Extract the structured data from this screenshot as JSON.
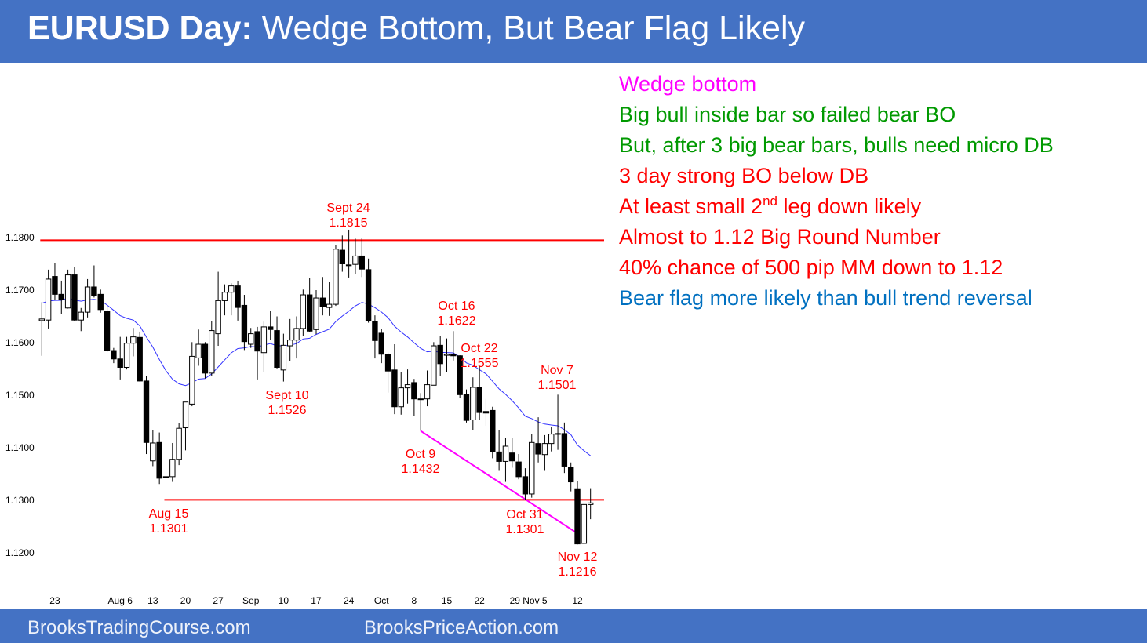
{
  "title": {
    "bold": "EURUSD Day:",
    "rest": " Wedge Bottom, But Bear Flag Likely"
  },
  "footer": {
    "left": "BrooksTradingCourse.com",
    "right": "BrooksPriceAction.com"
  },
  "notes": [
    {
      "text": "Wedge bottom",
      "color": "#FF00FF"
    },
    {
      "text": "Big bull inside bar so failed bear BO",
      "color": "#009900"
    },
    {
      "text": "But, after 3 big bear bars, bulls need micro DB",
      "color": "#009900"
    },
    {
      "text": "3 day strong BO below DB",
      "color": "#FF0000"
    },
    {
      "text": "At least small 2",
      "sup": "nd",
      "after": " leg down likely",
      "color": "#FF0000"
    },
    {
      "text": "Almost to 1.12 Big Round Number",
      "color": "#FF0000"
    },
    {
      "text": "40% chance of 500 pip MM down to 1.12",
      "color": "#FF0000"
    },
    {
      "text": "Bear flag more likely than bull trend reversal",
      "color": "#0070C0"
    }
  ],
  "chart_data": {
    "type": "candlestick",
    "title": "EURUSD Day",
    "ylim": [
      1.12,
      1.18
    ],
    "y_ticks": [
      "1.1800",
      "1.1700",
      "1.1600",
      "1.1500",
      "1.1400",
      "1.1300",
      "1.1200"
    ],
    "y_tick_values": [
      1.18,
      1.17,
      1.16,
      1.15,
      1.14,
      1.13,
      1.12
    ],
    "x_ticks": [
      {
        "label": "23",
        "bar": 2
      },
      {
        "label": "Aug  6",
        "bar": 12
      },
      {
        "label": "13",
        "bar": 17
      },
      {
        "label": "20",
        "bar": 22
      },
      {
        "label": "27",
        "bar": 27
      },
      {
        "label": "Sep",
        "bar": 32
      },
      {
        "label": "10",
        "bar": 37
      },
      {
        "label": "17",
        "bar": 42
      },
      {
        "label": "24",
        "bar": 47
      },
      {
        "label": "Oct",
        "bar": 52
      },
      {
        "label": "8",
        "bar": 57
      },
      {
        "label": "15",
        "bar": 62
      },
      {
        "label": "22",
        "bar": 67
      },
      {
        "label": "29  Nov 5",
        "bar": 74.5
      },
      {
        "label": "12",
        "bar": 82
      }
    ],
    "ohlc": [
      [
        1.1642,
        1.1677,
        1.1575,
        1.1645
      ],
      [
        1.1643,
        1.1739,
        1.1627,
        1.1721
      ],
      [
        1.1726,
        1.1752,
        1.1681,
        1.1692
      ],
      [
        1.1692,
        1.1718,
        1.1655,
        1.1682
      ],
      [
        1.1666,
        1.1739,
        1.1665,
        1.1729
      ],
      [
        1.1729,
        1.1744,
        1.1641,
        1.1643
      ],
      [
        1.1643,
        1.1666,
        1.1622,
        1.1658
      ],
      [
        1.1658,
        1.1721,
        1.1648,
        1.1706
      ],
      [
        1.1706,
        1.1747,
        1.1686,
        1.169
      ],
      [
        1.1692,
        1.1701,
        1.1657,
        1.1663
      ],
      [
        1.166,
        1.1668,
        1.1582,
        1.1585
      ],
      [
        1.1585,
        1.159,
        1.1561,
        1.1569
      ],
      [
        1.1569,
        1.1611,
        1.153,
        1.1553
      ],
      [
        1.1553,
        1.1611,
        1.1549,
        1.1599
      ],
      [
        1.1599,
        1.1628,
        1.1574,
        1.1611
      ],
      [
        1.161,
        1.1621,
        1.1526,
        1.1527
      ],
      [
        1.1527,
        1.1536,
        1.1388,
        1.141
      ],
      [
        1.1375,
        1.1433,
        1.1365,
        1.1409
      ],
      [
        1.141,
        1.1429,
        1.1331,
        1.1342
      ],
      [
        1.1345,
        1.1356,
        1.1301,
        1.1345
      ],
      [
        1.1345,
        1.1409,
        1.1335,
        1.1378
      ],
      [
        1.1378,
        1.1447,
        1.1367,
        1.1437
      ],
      [
        1.1438,
        1.1487,
        1.1395,
        1.1487
      ],
      [
        1.1483,
        1.1601,
        1.1479,
        1.1574
      ],
      [
        1.1571,
        1.1625,
        1.1556,
        1.1597
      ],
      [
        1.1597,
        1.1601,
        1.1532,
        1.1542
      ],
      [
        1.1542,
        1.1641,
        1.1536,
        1.1623
      ],
      [
        1.1617,
        1.1735,
        1.1594,
        1.168
      ],
      [
        1.168,
        1.1711,
        1.1652,
        1.1696
      ],
      [
        1.1696,
        1.1713,
        1.1652,
        1.1708
      ],
      [
        1.1708,
        1.1718,
        1.1642,
        1.1667
      ],
      [
        1.1671,
        1.1691,
        1.1586,
        1.1602
      ],
      [
        1.1597,
        1.1628,
        1.159,
        1.1617
      ],
      [
        1.1621,
        1.163,
        1.153,
        1.1584
      ],
      [
        1.1581,
        1.164,
        1.1544,
        1.163
      ],
      [
        1.163,
        1.166,
        1.1606,
        1.1625
      ],
      [
        1.1623,
        1.165,
        1.1551,
        1.1553
      ],
      [
        1.1548,
        1.1617,
        1.1526,
        1.1595
      ],
      [
        1.1594,
        1.1645,
        1.1565,
        1.1605
      ],
      [
        1.1605,
        1.165,
        1.157,
        1.1627
      ],
      [
        1.1627,
        1.1701,
        1.1613,
        1.1691
      ],
      [
        1.1691,
        1.1723,
        1.162,
        1.1622
      ],
      [
        1.1625,
        1.17,
        1.1616,
        1.1685
      ],
      [
        1.1685,
        1.1725,
        1.1652,
        1.1668
      ],
      [
        1.1667,
        1.1715,
        1.1651,
        1.1673
      ],
      [
        1.1673,
        1.1786,
        1.167,
        1.1778
      ],
      [
        1.1776,
        1.1804,
        1.1735,
        1.175
      ],
      [
        1.1748,
        1.1815,
        1.1724,
        1.1748
      ],
      [
        1.1749,
        1.1798,
        1.173,
        1.1765
      ],
      [
        1.1765,
        1.1799,
        1.1725,
        1.174
      ],
      [
        1.1739,
        1.176,
        1.1638,
        1.1642
      ],
      [
        1.1641,
        1.1652,
        1.157,
        1.1604
      ],
      [
        1.1618,
        1.1626,
        1.1561,
        1.1578
      ],
      [
        1.1578,
        1.1581,
        1.1505,
        1.1546
      ],
      [
        1.1548,
        1.1597,
        1.1464,
        1.1478
      ],
      [
        1.1478,
        1.1544,
        1.1463,
        1.1514
      ],
      [
        1.1514,
        1.1549,
        1.1484,
        1.152
      ],
      [
        1.1524,
        1.1531,
        1.1461,
        1.1493
      ],
      [
        1.1493,
        1.1504,
        1.1432,
        1.1492
      ],
      [
        1.1493,
        1.1547,
        1.1479,
        1.152
      ],
      [
        1.1519,
        1.1601,
        1.1519,
        1.1594
      ],
      [
        1.1595,
        1.1612,
        1.1536,
        1.156
      ],
      [
        1.1576,
        1.1608,
        1.1544,
        1.1578
      ],
      [
        1.1578,
        1.1622,
        1.1566,
        1.1575
      ],
      [
        1.1575,
        1.1576,
        1.1495,
        1.1501
      ],
      [
        1.1501,
        1.1511,
        1.1448,
        1.1452
      ],
      [
        1.1453,
        1.1534,
        1.1434,
        1.1515
      ],
      [
        1.1515,
        1.1555,
        1.1453,
        1.1467
      ],
      [
        1.1469,
        1.1493,
        1.1442,
        1.1466
      ],
      [
        1.1471,
        1.1478,
        1.138,
        1.1393
      ],
      [
        1.1392,
        1.1433,
        1.1356,
        1.1374
      ],
      [
        1.1374,
        1.1419,
        1.1335,
        1.1403
      ],
      [
        1.139,
        1.1419,
        1.1362,
        1.1375
      ],
      [
        1.1373,
        1.1388,
        1.134,
        1.1345
      ],
      [
        1.1345,
        1.1361,
        1.1301,
        1.1312
      ],
      [
        1.1312,
        1.1426,
        1.1305,
        1.141
      ],
      [
        1.1408,
        1.1458,
        1.1372,
        1.1388
      ],
      [
        1.1387,
        1.1424,
        1.1356,
        1.1408
      ],
      [
        1.1408,
        1.1439,
        1.1393,
        1.1426
      ],
      [
        1.1427,
        1.1501,
        1.1396,
        1.1427
      ],
      [
        1.1427,
        1.1448,
        1.1352,
        1.1365
      ],
      [
        1.1363,
        1.1372,
        1.1317,
        1.1335
      ],
      [
        1.1322,
        1.1336,
        1.1216,
        1.1217
      ],
      [
        1.1218,
        1.1293,
        1.1217,
        1.1292
      ],
      [
        1.1292,
        1.1323,
        1.1264,
        1.1295
      ]
    ],
    "moving_average": {
      "type": "EMA",
      "period": 20,
      "seed": 1.1678,
      "color": "#3333FF"
    },
    "lines": [
      {
        "name": "resistance",
        "price": 1.1795,
        "from_bar": 0,
        "color": "#FF0000"
      },
      {
        "name": "support",
        "price": 1.1301,
        "from_bar": 19,
        "color": "#FF0000"
      },
      {
        "name": "wedge-line",
        "from": [
          58,
          1.1432
        ],
        "to": [
          82,
          1.1237
        ],
        "color": "#FF00FF"
      }
    ],
    "annotations": [
      {
        "date": "Sept 24",
        "value": "1.1815"
      },
      {
        "date": "Aug 15",
        "value": "1.1301"
      },
      {
        "date": "Sept 10",
        "value": "1.1526"
      },
      {
        "date": "Oct 16",
        "value": "1.1622"
      },
      {
        "date": "Oct 22",
        "value": "1.1555"
      },
      {
        "date": "Oct 9",
        "value": "1.1432"
      },
      {
        "date": "Nov 7",
        "value": "1.1501"
      },
      {
        "date": "Oct 31",
        "value": "1.1301"
      },
      {
        "date": "Nov 12",
        "value": "1.1216"
      }
    ]
  }
}
